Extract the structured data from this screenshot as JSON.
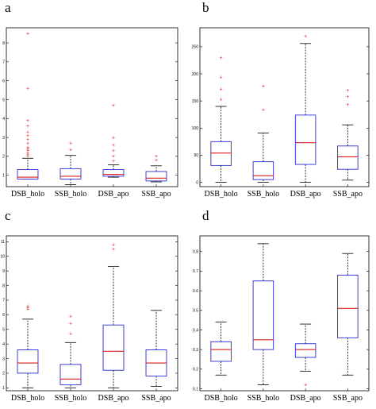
{
  "colors": {
    "box": "#2a2ad6",
    "median": "#e02020",
    "whisker": "#000000",
    "outlier": "#e02020"
  },
  "chart_data": [
    {
      "panel_label": "a",
      "type": "boxplot",
      "categories": [
        "DSB_holo",
        "SSB_holo",
        "DSB_apo",
        "SSB_apo"
      ],
      "yticks": [
        1,
        2,
        3,
        4,
        5,
        6,
        7,
        8
      ],
      "ylim": [
        0.4,
        8.8
      ],
      "grid": false,
      "boxes": [
        {
          "whislo": 0.8,
          "q1": 0.8,
          "med": 0.9,
          "q3": 1.3,
          "whishi": 1.9,
          "fliers": [
            2.0,
            2.1,
            2.2,
            2.3,
            2.4,
            2.5,
            2.7,
            2.9,
            3.1,
            3.3,
            3.6,
            3.9,
            5.6,
            8.5
          ]
        },
        {
          "whislo": 0.5,
          "q1": 0.8,
          "med": 0.95,
          "q3": 1.35,
          "whishi": 2.05,
          "fliers": [
            2.35,
            2.7
          ]
        },
        {
          "whislo": 0.9,
          "q1": 0.95,
          "med": 1.05,
          "q3": 1.3,
          "whishi": 1.55,
          "fliers": [
            1.75,
            2.0,
            2.3,
            2.6,
            3.0,
            4.7
          ]
        },
        {
          "whislo": 0.65,
          "q1": 0.7,
          "med": 0.85,
          "q3": 1.2,
          "whishi": 1.5,
          "fliers": [
            1.8,
            2.0
          ]
        }
      ]
    },
    {
      "panel_label": "b",
      "type": "boxplot",
      "categories": [
        "DSB_holo",
        "SSB_holo",
        "DSB_apo",
        "SSB_apo"
      ],
      "yticks": [
        0,
        50,
        100,
        150,
        200,
        250
      ],
      "ylim": [
        -8,
        285
      ],
      "grid": false,
      "boxes": [
        {
          "whislo": 0,
          "q1": 31,
          "med": 54,
          "q3": 75,
          "whishi": 140,
          "fliers": [
            153,
            172,
            194,
            230
          ]
        },
        {
          "whislo": 0,
          "q1": 5,
          "med": 12,
          "q3": 38,
          "whishi": 91,
          "fliers": [
            134,
            178
          ]
        },
        {
          "whislo": 0,
          "q1": 33,
          "med": 73,
          "q3": 124,
          "whishi": 256,
          "fliers": [
            269
          ]
        },
        {
          "whislo": 4,
          "q1": 24,
          "med": 47,
          "q3": 67,
          "whishi": 106,
          "fliers": [
            143,
            158,
            170
          ]
        }
      ]
    },
    {
      "panel_label": "c",
      "type": "boxplot",
      "categories": [
        "DSB_holo",
        "SSB_holo",
        "DSB_apo",
        "SSB_apo"
      ],
      "yticks": [
        1,
        2,
        3,
        4,
        5,
        6,
        7,
        8,
        9,
        10,
        11
      ],
      "ylim": [
        0.8,
        11.4
      ],
      "grid": false,
      "boxes": [
        {
          "whislo": 1.0,
          "q1": 2.0,
          "med": 2.7,
          "q3": 3.6,
          "whishi": 5.7,
          "fliers": [
            6.4,
            6.5,
            6.6
          ]
        },
        {
          "whislo": 1.0,
          "q1": 1.2,
          "med": 1.6,
          "q3": 2.6,
          "whishi": 4.1,
          "fliers": [
            4.7,
            5.4,
            5.9
          ]
        },
        {
          "whislo": 1.0,
          "q1": 2.2,
          "med": 3.5,
          "q3": 5.3,
          "whishi": 9.3,
          "fliers": [
            10.5,
            10.8
          ]
        },
        {
          "whislo": 1.1,
          "q1": 1.8,
          "med": 2.7,
          "q3": 3.6,
          "whishi": 6.3,
          "fliers": []
        }
      ]
    },
    {
      "panel_label": "d",
      "type": "boxplot",
      "categories": [
        "DSB_holo",
        "SSB_holo",
        "DSB_apo",
        "SSB_apo"
      ],
      "yticks": [
        0.1,
        0.2,
        0.3,
        0.4,
        0.5,
        0.6,
        0.7,
        0.8
      ],
      "ylim": [
        0.09,
        0.88
      ],
      "grid": false,
      "boxes": [
        {
          "whislo": 0.17,
          "q1": 0.24,
          "med": 0.3,
          "q3": 0.34,
          "whishi": 0.44,
          "fliers": []
        },
        {
          "whislo": 0.12,
          "q1": 0.3,
          "med": 0.35,
          "q3": 0.65,
          "whishi": 0.84,
          "fliers": []
        },
        {
          "whislo": 0.19,
          "q1": 0.26,
          "med": 0.3,
          "q3": 0.33,
          "whishi": 0.43,
          "fliers": [
            0.12
          ]
        },
        {
          "whislo": 0.17,
          "q1": 0.36,
          "med": 0.51,
          "q3": 0.68,
          "whishi": 0.79,
          "fliers": []
        }
      ]
    }
  ]
}
